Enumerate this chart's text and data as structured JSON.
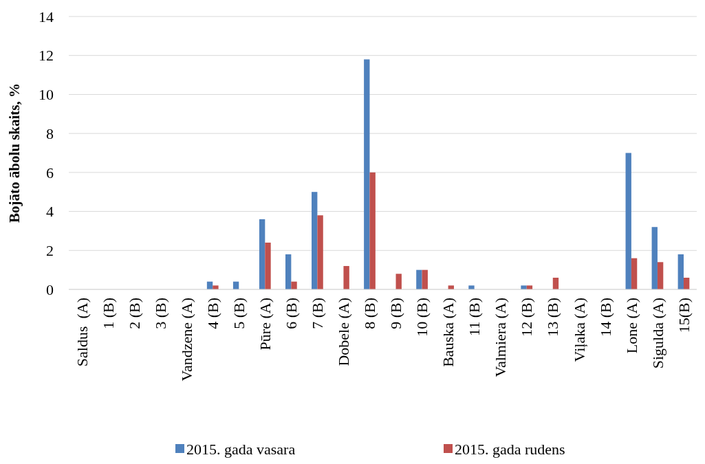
{
  "chart_data": {
    "type": "bar",
    "ylabel": "Bojāto ābolu skaits, %",
    "categories": [
      "Saldus  (A)",
      "1 (B)",
      "2 (B)",
      "3 (B)",
      "Vandzene (A)",
      "4 (B)",
      "5 (B)",
      "Pūre (A)",
      "6 (B)",
      "7 (B)",
      "Dobele (A)",
      "8 (B)",
      "9 (B)",
      "10 (B)",
      "Bauska (A)",
      "11 (B)",
      "Valmiera (A)",
      "12 (B)",
      "13 (B)",
      "Viļaka (A)",
      "14 (B)",
      "Lone (A)",
      "Sigulda (A)",
      "15(B)"
    ],
    "series": [
      {
        "name": "2015. gada vasara",
        "color": "#4f81bd",
        "values": [
          0,
          0,
          0,
          0,
          0,
          0.4,
          0.4,
          3.6,
          1.8,
          5.0,
          0,
          11.8,
          0,
          1.0,
          0,
          0.2,
          0,
          0.2,
          0,
          0,
          0,
          7.0,
          3.2,
          1.8
        ]
      },
      {
        "name": "2015. gada rudens",
        "color": "#c0504d",
        "values": [
          0,
          0,
          0,
          0,
          0,
          0.2,
          0,
          2.4,
          0.4,
          3.8,
          1.2,
          6.0,
          0.8,
          1.0,
          0.2,
          0,
          0,
          0.2,
          0.6,
          0,
          0,
          1.6,
          1.4,
          0.6
        ]
      }
    ],
    "ylim": [
      0,
      14
    ],
    "yticks": [
      0,
      2,
      4,
      6,
      8,
      10,
      12,
      14
    ],
    "grid": "y",
    "legend": "bottom"
  }
}
